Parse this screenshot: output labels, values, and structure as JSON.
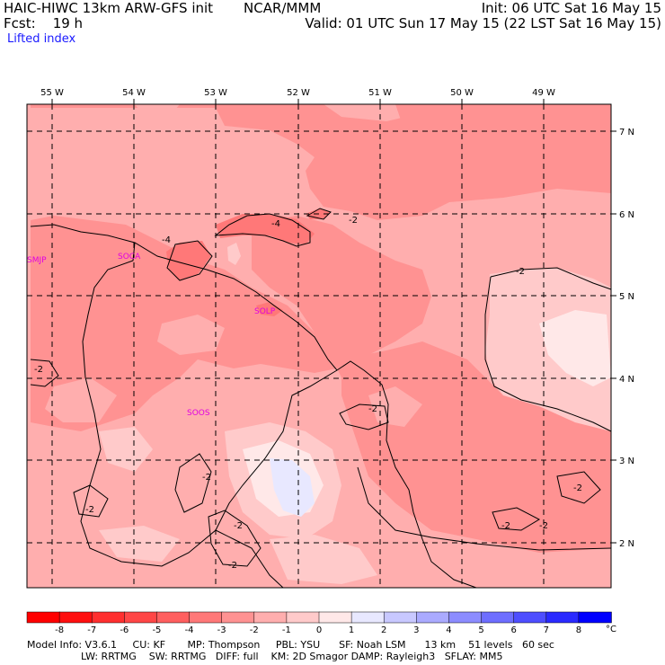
{
  "header": {
    "model": "HAIC-HIWC 13km ARW-GFS init",
    "org": "NCAR/MMM",
    "init": "Init: 06 UTC Sat 16 May 15",
    "fcst": "Fcst:    19 h",
    "valid": "Valid: 01 UTC Sun 17 May 15 (22 LST Sat 16 May 15)",
    "field": "Lifted index"
  },
  "map": {
    "lon_labels": [
      "55 W",
      "54 W",
      "53 W",
      "52 W",
      "51 W",
      "50 W",
      "49 W"
    ],
    "lat_labels": [
      "7 N",
      "6 N",
      "5 N",
      "4 N",
      "3 N",
      "2 N"
    ],
    "stations": [
      "SMJP",
      "SOCA",
      "SOLP",
      "SOOS"
    ],
    "contour_labels": [
      "-4",
      "-4",
      "-2",
      "-2",
      "-2",
      "-2",
      "-2",
      "-2",
      "-2",
      "-2",
      "-2",
      "-2",
      "-2"
    ]
  },
  "colorbar": {
    "labels": [
      "-8",
      "-7",
      "-6",
      "-5",
      "-4",
      "-3",
      "-2",
      "-1",
      "0",
      "1",
      "2",
      "3",
      "4",
      "5",
      "6",
      "7",
      "8"
    ],
    "unit": "°C",
    "colors": [
      "#ff0f0f",
      "#ff2f2f",
      "#ff4646",
      "#ff5f5f",
      "#ff7878",
      "#ff9292",
      "#ffaeae",
      "#ffcaca",
      "#ffe8e8",
      "#e8e8ff",
      "#c8c8ff",
      "#aaaaff",
      "#8c8cff",
      "#6e6eff",
      "#4e4eff",
      "#2a2aff",
      "#0000ff"
    ]
  },
  "footer": {
    "line1": "Model Info: V3.6.1     CU: KF       MP: Thompson     PBL: YSU      SF: Noah LSM      13 km    51 levels   60 sec",
    "line2": "LW: RRTMG    SW: RRTMG   DIFF: full    KM: 2D Smagor DAMP: Rayleigh3   SFLAY: MM5"
  }
}
